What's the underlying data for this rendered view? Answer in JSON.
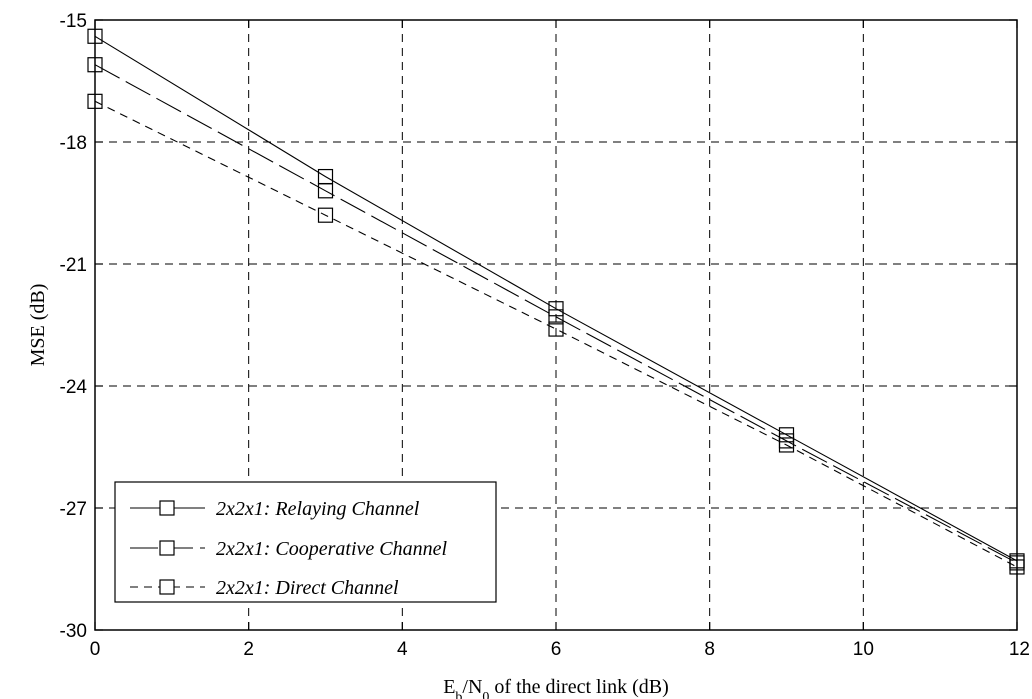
{
  "chart_data": {
    "type": "line",
    "xlabel": {
      "main": "E",
      "sub1": "b",
      "mid": "/N",
      "sub2": "0",
      "rest": " of the direct link (dB)"
    },
    "ylabel": "MSE (dB)",
    "xlim": [
      0,
      12
    ],
    "ylim": [
      -30,
      -15
    ],
    "xticks": [
      0,
      2,
      4,
      6,
      8,
      10,
      12
    ],
    "yticks": [
      -30,
      -27,
      -24,
      -21,
      -18,
      -15
    ],
    "grid": true,
    "legend_position": "bottom-left",
    "x": [
      0,
      3,
      6,
      9,
      12
    ],
    "series": [
      {
        "name": "2x2x1: Relaying Channel",
        "values": [
          -15.4,
          -18.85,
          -22.1,
          -25.2,
          -28.3
        ],
        "line_style": "solid",
        "legend_label": "2x2x1: Relaying Channel"
      },
      {
        "name": "2x2x1: Cooperative Channel",
        "values": [
          -16.1,
          -19.2,
          -22.3,
          -25.35,
          -28.35
        ],
        "line_style": "long-dash",
        "legend_label": "2x2x1: Cooperative Channel"
      },
      {
        "name": "2x2x1: Direct Channel",
        "values": [
          -17.0,
          -19.8,
          -22.6,
          -25.45,
          -28.45
        ],
        "line_style": "short-dash",
        "legend_label": "2x2x1: Direct Channel"
      }
    ],
    "colors": {
      "line": "#000000",
      "grid": "#000000",
      "background": "#ffffff"
    }
  }
}
